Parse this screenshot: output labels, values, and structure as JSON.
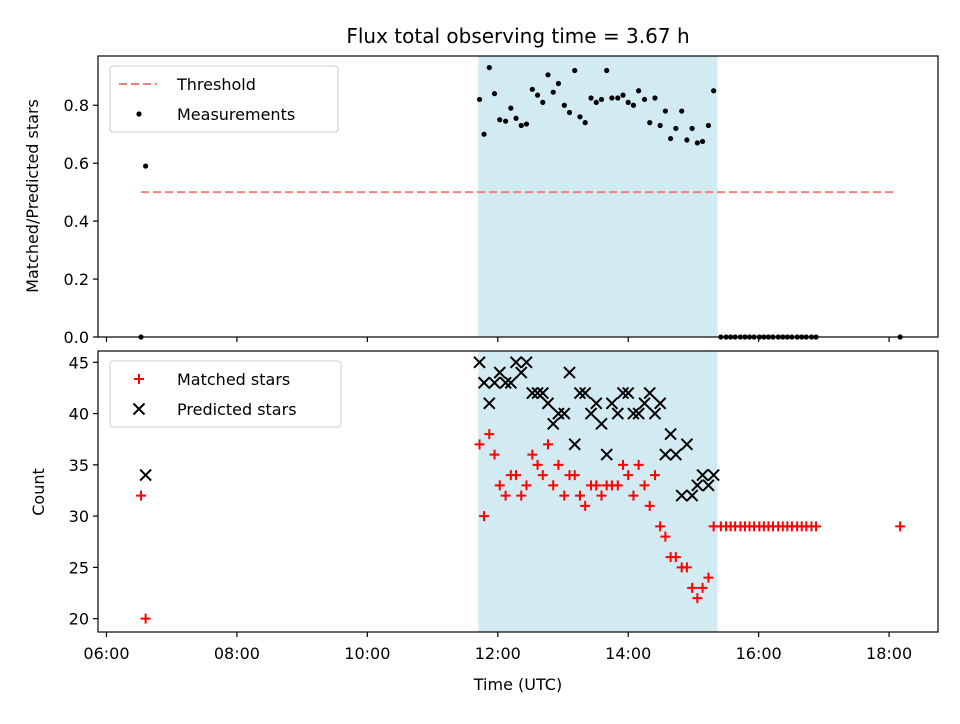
{
  "chart_data": {
    "title": "Flux total observing time = 3.67 h",
    "xlabel": "Time (UTC)",
    "x_ticks": [
      "06:00",
      "08:00",
      "10:00",
      "12:00",
      "14:00",
      "16:00",
      "18:00"
    ],
    "x_tick_hours": [
      6,
      8,
      10,
      12,
      14,
      16,
      18
    ],
    "xlim_hours": [
      5.87,
      18.75
    ],
    "shaded_span_hours": [
      11.7,
      15.37
    ],
    "shade_color": "#add8e6",
    "panels": [
      {
        "type": "scatter",
        "ylabel": "Matched/Predicted stars",
        "ylim": [
          0,
          0.97
        ],
        "y_ticks": [
          "0.0",
          "0.2",
          "0.4",
          "0.6",
          "0.8"
        ],
        "y_tick_values": [
          0,
          0.2,
          0.4,
          0.6,
          0.8
        ],
        "legend": [
          "Threshold",
          "Measurements"
        ],
        "threshold": {
          "name": "Threshold",
          "value": 0.5,
          "x_range_hours": [
            6.53,
            18.12
          ],
          "color": "#f08080",
          "style": "dashed"
        },
        "series": [
          {
            "name": "Measurements",
            "marker": "dot",
            "color": "#000000",
            "points": [
              [
                6.53,
                0.0
              ],
              [
                6.6,
                0.59
              ],
              [
                11.72,
                0.82
              ],
              [
                11.79,
                0.7
              ],
              [
                11.87,
                0.93
              ],
              [
                11.95,
                0.84
              ],
              [
                12.03,
                0.75
              ],
              [
                12.12,
                0.745
              ],
              [
                12.2,
                0.79
              ],
              [
                12.28,
                0.755
              ],
              [
                12.36,
                0.73
              ],
              [
                12.44,
                0.735
              ],
              [
                12.53,
                0.855
              ],
              [
                12.61,
                0.835
              ],
              [
                12.69,
                0.81
              ],
              [
                12.77,
                0.905
              ],
              [
                12.85,
                0.845
              ],
              [
                12.93,
                0.875
              ],
              [
                13.02,
                0.8
              ],
              [
                13.1,
                0.775
              ],
              [
                13.18,
                0.92
              ],
              [
                13.26,
                0.76
              ],
              [
                13.34,
                0.74
              ],
              [
                13.43,
                0.825
              ],
              [
                13.51,
                0.81
              ],
              [
                13.59,
                0.82
              ],
              [
                13.67,
                0.92
              ],
              [
                13.75,
                0.825
              ],
              [
                13.84,
                0.825
              ],
              [
                13.92,
                0.835
              ],
              [
                14.0,
                0.81
              ],
              [
                14.08,
                0.8
              ],
              [
                14.16,
                0.85
              ],
              [
                14.25,
                0.82
              ],
              [
                14.33,
                0.74
              ],
              [
                14.41,
                0.825
              ],
              [
                14.49,
                0.73
              ],
              [
                14.57,
                0.78
              ],
              [
                14.65,
                0.685
              ],
              [
                14.73,
                0.72
              ],
              [
                14.82,
                0.78
              ],
              [
                14.9,
                0.68
              ],
              [
                14.98,
                0.72
              ],
              [
                15.06,
                0.67
              ],
              [
                15.14,
                0.675
              ],
              [
                15.23,
                0.73
              ],
              [
                15.31,
                0.85
              ],
              [
                15.42,
                0.0
              ],
              [
                15.5,
                0.0
              ],
              [
                15.57,
                0.0
              ],
              [
                15.64,
                0.0
              ],
              [
                15.72,
                0.0
              ],
              [
                15.79,
                0.0
              ],
              [
                15.86,
                0.0
              ],
              [
                15.93,
                0.0
              ],
              [
                16.01,
                0.0
              ],
              [
                16.08,
                0.0
              ],
              [
                16.15,
                0.0
              ],
              [
                16.22,
                0.0
              ],
              [
                16.3,
                0.0
              ],
              [
                16.37,
                0.0
              ],
              [
                16.44,
                0.0
              ],
              [
                16.51,
                0.0
              ],
              [
                16.59,
                0.0
              ],
              [
                16.66,
                0.0
              ],
              [
                16.73,
                0.0
              ],
              [
                16.81,
                0.0
              ],
              [
                16.88,
                0.0
              ],
              [
                18.17,
                0.0
              ]
            ]
          }
        ]
      },
      {
        "type": "scatter",
        "ylabel": "Count",
        "ylim": [
          18.7,
          46.1
        ],
        "y_ticks": [
          "20",
          "25",
          "30",
          "35",
          "40",
          "45"
        ],
        "y_tick_values": [
          20,
          25,
          30,
          35,
          40,
          45
        ],
        "legend": [
          "Matched stars",
          "Predicted stars"
        ],
        "series": [
          {
            "name": "Matched stars",
            "marker": "plus",
            "color": "#ff0000",
            "points": [
              [
                6.53,
                32
              ],
              [
                6.6,
                20
              ],
              [
                11.72,
                37
              ],
              [
                11.79,
                30
              ],
              [
                11.87,
                38
              ],
              [
                11.95,
                36
              ],
              [
                12.03,
                33
              ],
              [
                12.12,
                32
              ],
              [
                12.2,
                34
              ],
              [
                12.28,
                34
              ],
              [
                12.36,
                32
              ],
              [
                12.44,
                33
              ],
              [
                12.53,
                36
              ],
              [
                12.61,
                35
              ],
              [
                12.69,
                34
              ],
              [
                12.77,
                37
              ],
              [
                12.85,
                33
              ],
              [
                12.93,
                35
              ],
              [
                13.02,
                32
              ],
              [
                13.1,
                34
              ],
              [
                13.18,
                34
              ],
              [
                13.26,
                32
              ],
              [
                13.34,
                31
              ],
              [
                13.43,
                33
              ],
              [
                13.51,
                33
              ],
              [
                13.59,
                32
              ],
              [
                13.67,
                33
              ],
              [
                13.75,
                33
              ],
              [
                13.84,
                33
              ],
              [
                13.92,
                35
              ],
              [
                14.0,
                34
              ],
              [
                14.08,
                32
              ],
              [
                14.16,
                35
              ],
              [
                14.25,
                33
              ],
              [
                14.33,
                31
              ],
              [
                14.41,
                34
              ],
              [
                14.49,
                29
              ],
              [
                14.57,
                28
              ],
              [
                14.65,
                26
              ],
              [
                14.73,
                26
              ],
              [
                14.82,
                25
              ],
              [
                14.9,
                25
              ],
              [
                14.98,
                23
              ],
              [
                15.06,
                22
              ],
              [
                15.14,
                23
              ],
              [
                15.23,
                24
              ],
              [
                15.31,
                29
              ],
              [
                15.42,
                29
              ],
              [
                15.5,
                29
              ],
              [
                15.57,
                29
              ],
              [
                15.64,
                29
              ],
              [
                15.72,
                29
              ],
              [
                15.79,
                29
              ],
              [
                15.86,
                29
              ],
              [
                15.93,
                29
              ],
              [
                16.01,
                29
              ],
              [
                16.08,
                29
              ],
              [
                16.15,
                29
              ],
              [
                16.22,
                29
              ],
              [
                16.3,
                29
              ],
              [
                16.37,
                29
              ],
              [
                16.44,
                29
              ],
              [
                16.51,
                29
              ],
              [
                16.59,
                29
              ],
              [
                16.66,
                29
              ],
              [
                16.73,
                29
              ],
              [
                16.81,
                29
              ],
              [
                16.88,
                29
              ],
              [
                18.17,
                29
              ]
            ]
          },
          {
            "name": "Predicted stars",
            "marker": "cross",
            "color": "#000000",
            "points": [
              [
                6.6,
                34
              ],
              [
                11.72,
                45
              ],
              [
                11.79,
                43
              ],
              [
                11.87,
                41
              ],
              [
                11.95,
                43
              ],
              [
                12.03,
                44
              ],
              [
                12.12,
                43
              ],
              [
                12.2,
                43
              ],
              [
                12.28,
                45
              ],
              [
                12.36,
                44
              ],
              [
                12.44,
                45
              ],
              [
                12.53,
                42
              ],
              [
                12.61,
                42
              ],
              [
                12.69,
                42
              ],
              [
                12.77,
                41
              ],
              [
                12.85,
                39
              ],
              [
                12.93,
                40
              ],
              [
                13.02,
                40
              ],
              [
                13.1,
                44
              ],
              [
                13.18,
                37
              ],
              [
                13.26,
                42
              ],
              [
                13.34,
                42
              ],
              [
                13.43,
                40
              ],
              [
                13.51,
                41
              ],
              [
                13.59,
                39
              ],
              [
                13.67,
                36
              ],
              [
                13.75,
                41
              ],
              [
                13.84,
                40
              ],
              [
                13.92,
                42
              ],
              [
                14.0,
                42
              ],
              [
                14.08,
                40
              ],
              [
                14.16,
                40
              ],
              [
                14.25,
                41
              ],
              [
                14.33,
                42
              ],
              [
                14.41,
                40
              ],
              [
                14.49,
                41
              ],
              [
                14.57,
                36
              ],
              [
                14.65,
                38
              ],
              [
                14.73,
                36
              ],
              [
                14.82,
                32
              ],
              [
                14.9,
                37
              ],
              [
                14.98,
                32
              ],
              [
                15.06,
                33
              ],
              [
                15.14,
                34
              ],
              [
                15.23,
                33
              ],
              [
                15.31,
                34
              ]
            ]
          }
        ]
      }
    ]
  }
}
